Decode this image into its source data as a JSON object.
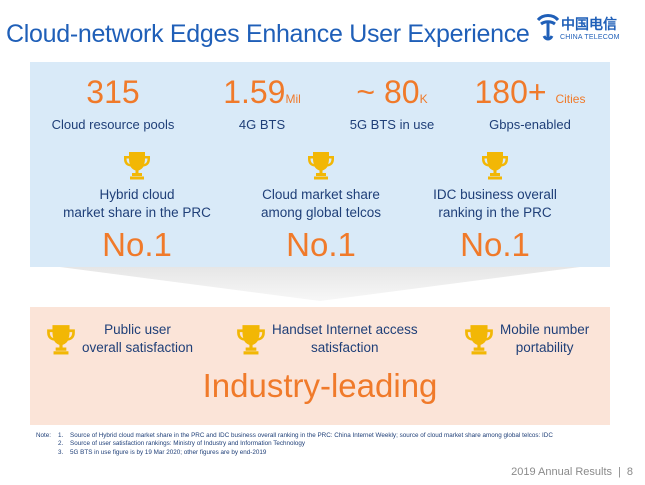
{
  "title": "Cloud-network Edges Enhance User Experience",
  "logo": {
    "cn": "中国电信",
    "en": "CHINA TELECOM"
  },
  "metrics": [
    {
      "value": "315",
      "unit": "",
      "label": "Cloud resource pools"
    },
    {
      "value": "1.59",
      "unit": "Mil",
      "label": "4G BTS"
    },
    {
      "value": "~ 80",
      "unit": "K",
      "label": "5G BTS in use"
    },
    {
      "value": "180+",
      "unit": "Cities",
      "label": "Gbps-enabled"
    }
  ],
  "awards": [
    {
      "line1": "Hybrid cloud",
      "line2": "market share in the PRC",
      "rank": "No.1"
    },
    {
      "line1": "Cloud market share",
      "line2": "among global telcos",
      "rank": "No.1"
    },
    {
      "line1": "IDC business overall",
      "line2": "ranking in the PRC",
      "rank": "No.1"
    }
  ],
  "leading": [
    {
      "line1": "Public user",
      "line2": "overall satisfaction"
    },
    {
      "line1": "Handset Internet access",
      "line2": "satisfaction"
    },
    {
      "line1": "Mobile number",
      "line2": "portability"
    }
  ],
  "industry_label": "Industry-leading",
  "notes": {
    "head": "Note:",
    "items": [
      {
        "n": "1.",
        "text": "Source of Hybrid cloud market share in the PRC and IDC business overall ranking in the PRC: China Internet Weekly; source of cloud market share among global telcos: IDC"
      },
      {
        "n": "2.",
        "text": "Source of user satisfaction rankings: Ministry of Industry and Information Technology"
      },
      {
        "n": "3.",
        "text": "5G BTS in use figure is by 19 Mar 2020; other figures are by end-2019"
      }
    ]
  },
  "footer": {
    "text": "2019 Annual Results",
    "sep": "|",
    "page": "8"
  },
  "colors": {
    "title": "#1f5fb8",
    "accent": "#f07a2a",
    "panel_blue": "#d9eaf8",
    "panel_peach": "#fbe4d8",
    "trophy": "#f2b705"
  }
}
